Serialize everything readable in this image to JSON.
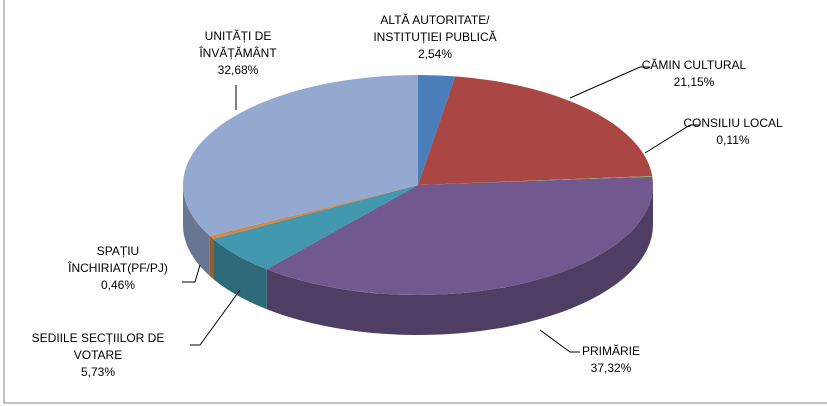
{
  "chart_data": {
    "type": "pie",
    "categories": [
      "ALTĂ AUTORITATE/ INSTITUȚIEI PUBLICĂ",
      "CĂMIN CULTURAL",
      "CONSILIU LOCAL",
      "PRIMĂRIE",
      "SEDIILE SECȚIILOR DE VOTARE",
      "SPAȚIU ÎNCHIRIAT(PF/PJ)",
      "UNITĂȚI DE ÎNVĂȚĂMÂNT"
    ],
    "values": [
      2.54,
      21.15,
      0.11,
      37.32,
      5.73,
      0.46,
      32.68
    ],
    "value_labels": [
      "2,54%",
      "21,15%",
      "0,11%",
      "37,32%",
      "5,73%",
      "0,46%",
      "32,68%"
    ],
    "colors": [
      "#4a7ebb",
      "#aa4643",
      "#89a54e",
      "#71588f",
      "#4198af",
      "#db843d",
      "#93a9cf"
    ]
  }
}
